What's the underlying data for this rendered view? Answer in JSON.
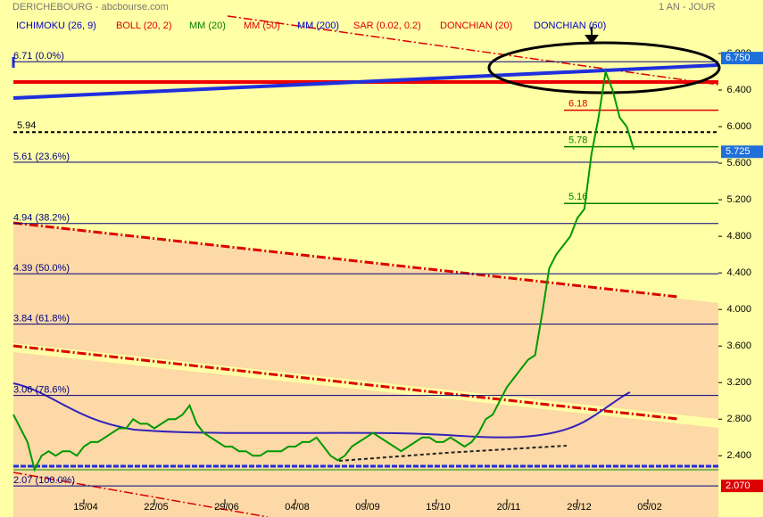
{
  "chart_data": {
    "type": "line",
    "title": "DERICHEBOURG - abcbourse.com",
    "period": "1 AN - JOUR",
    "indicators": [
      {
        "name": "ICHIMOKU (26, 9)",
        "color": "#0000cc"
      },
      {
        "name": "BOLL (20, 2)",
        "color": "#dd0000"
      },
      {
        "name": "MM (20)",
        "color": "#008000"
      },
      {
        "name": "MM (50)",
        "color": "#dd0000"
      },
      {
        "name": "MM (200)",
        "color": "#0000cc"
      },
      {
        "name": "SAR (0.02, 0.2)",
        "color": "#dd0000"
      },
      {
        "name": "DONCHIAN (20)",
        "color": "#dd0000"
      },
      {
        "name": "DONCHIAN (60)",
        "color": "#0000cc"
      }
    ],
    "categories": [
      null,
      null,
      null,
      null,
      null,
      null,
      null,
      null,
      null,
      null,
      "15/04",
      null,
      null,
      null,
      null,
      null,
      null,
      null,
      null,
      null,
      "22/05",
      null,
      null,
      null,
      null,
      null,
      null,
      null,
      null,
      null,
      "29/06",
      null,
      null,
      null,
      null,
      null,
      null,
      null,
      null,
      null,
      "04/08",
      null,
      null,
      null,
      null,
      null,
      null,
      null,
      null,
      null,
      "09/09",
      null,
      null,
      null,
      null,
      null,
      null,
      null,
      null,
      null,
      "15/10",
      null,
      null,
      null,
      null,
      null,
      null,
      null,
      null,
      null,
      "20/11",
      null,
      null,
      null,
      null,
      null,
      null,
      null,
      null,
      null,
      "29/12",
      null,
      null,
      null,
      null,
      null,
      null,
      null,
      null,
      null,
      "05/02"
    ],
    "values": [
      2.85,
      2.7,
      2.55,
      2.25,
      2.4,
      2.45,
      2.4,
      2.45,
      2.45,
      2.4,
      2.5,
      2.55,
      2.55,
      2.6,
      2.65,
      2.7,
      2.7,
      2.8,
      2.75,
      2.75,
      2.7,
      2.75,
      2.8,
      2.8,
      2.85,
      2.95,
      2.75,
      2.65,
      2.6,
      2.55,
      2.5,
      2.5,
      2.45,
      2.45,
      2.4,
      2.4,
      2.45,
      2.45,
      2.45,
      2.5,
      2.5,
      2.55,
      2.55,
      2.6,
      2.5,
      2.4,
      2.35,
      2.4,
      2.5,
      2.55,
      2.6,
      2.65,
      2.6,
      2.55,
      2.5,
      2.45,
      2.5,
      2.55,
      2.6,
      2.6,
      2.55,
      2.55,
      2.6,
      2.55,
      2.5,
      2.55,
      2.65,
      2.8,
      2.85,
      3.0,
      3.15,
      3.25,
      3.35,
      3.45,
      3.5,
      3.95,
      4.45,
      4.6,
      4.7,
      4.8,
      5.0,
      5.1,
      5.7,
      6.1,
      6.6,
      6.4,
      6.1,
      6.0,
      5.75,
      null,
      null
    ],
    "color": "#009900",
    "ylim": [
      1.73,
      7.385
    ],
    "yticks": [
      {
        "value": 2.4,
        "label": "2.400"
      },
      {
        "value": 2.8,
        "label": "2.800"
      },
      {
        "value": 3.2,
        "label": "3.200"
      },
      {
        "value": 3.6,
        "label": "3.600"
      },
      {
        "value": 4.0,
        "label": "4.000"
      },
      {
        "value": 4.4,
        "label": "4.400"
      },
      {
        "value": 4.8,
        "label": "4.800"
      },
      {
        "value": 5.2,
        "label": "5.200"
      },
      {
        "value": 5.6,
        "label": "5.600"
      },
      {
        "value": 6.0,
        "label": "6.000"
      },
      {
        "value": 6.4,
        "label": "6.400"
      },
      {
        "value": 6.8,
        "label": "6.800"
      }
    ],
    "fib_levels": [
      {
        "value": 6.71,
        "label": "6.71 (0.0%)"
      },
      {
        "value": 5.61,
        "label": "5.61 (23.6%)"
      },
      {
        "value": 4.94,
        "label": "4.94 (38.2%)"
      },
      {
        "value": 4.39,
        "label": "4.39 (50.0%)"
      },
      {
        "value": 3.84,
        "label": "3.84 (61.8%)"
      },
      {
        "value": 3.06,
        "label": "3.06 (78.6%)"
      },
      {
        "value": 2.07,
        "label": "2.07 (100.0%)"
      }
    ],
    "levels": [
      {
        "value": 5.94,
        "label": "5.94",
        "color": "#000000",
        "style": "dashed"
      },
      {
        "value": 6.18,
        "label": "6.18",
        "color": "#dd0000",
        "style": "solid"
      },
      {
        "value": 5.78,
        "label": "5.78",
        "color": "#008000",
        "style": "solid"
      },
      {
        "value": 5.16,
        "label": "5.16",
        "color": "#008000",
        "style": "solid"
      }
    ],
    "price_tags": [
      {
        "value": 6.75,
        "label": "6.750",
        "color": "#1e6fd9"
      },
      {
        "value": 5.725,
        "label": "5.725",
        "color": "#1e6fd9"
      },
      {
        "value": 2.07,
        "label": "2.070",
        "color": "#dd0000"
      }
    ]
  }
}
